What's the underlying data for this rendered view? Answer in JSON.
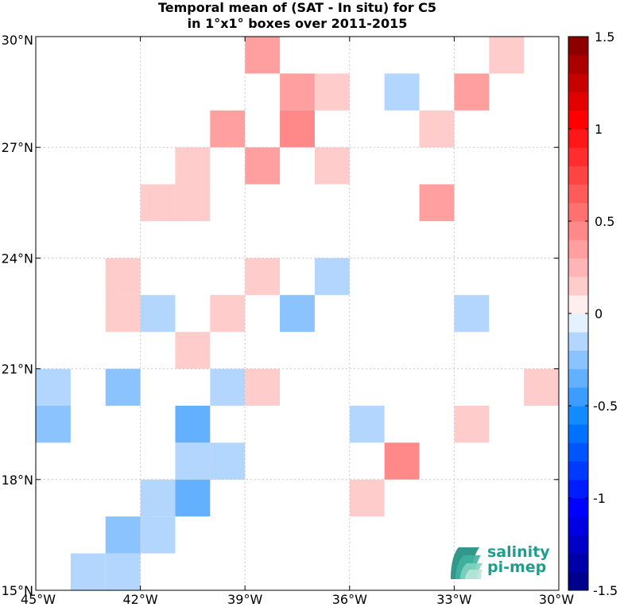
{
  "chart_data": {
    "type": "heatmap",
    "title": "Temporal mean of (SAT - In situ) for C5",
    "subtitle": "in 1°x1° boxes over 2011-2015",
    "x_ticks": [
      "45°W",
      "42°W",
      "39°W",
      "36°W",
      "33°W",
      "30°W"
    ],
    "x_tick_values": [
      -45,
      -42,
      -39,
      -36,
      -33,
      -30
    ],
    "y_ticks": [
      "15°N",
      "18°N",
      "21°N",
      "24°N",
      "27°N",
      "30°N"
    ],
    "y_tick_values": [
      15,
      18,
      21,
      24,
      27,
      30
    ],
    "xlim": [
      -45,
      -30
    ],
    "ylim": [
      15,
      30
    ],
    "grid": true,
    "colorbar": {
      "range": [
        -1.5,
        1.5
      ],
      "levels": 30,
      "tick_labels": [
        "1.5",
        "1",
        "0.5",
        "0",
        "-0.5",
        "-1",
        "-1.5"
      ],
      "tick_values": [
        1.5,
        1,
        0.5,
        0,
        -0.5,
        -1,
        -1.5
      ]
    },
    "cells": [
      {
        "lon": -38.5,
        "lat": 29.5,
        "value": 0.35
      },
      {
        "lon": -31.5,
        "lat": 29.5,
        "value": 0.15
      },
      {
        "lon": -37.5,
        "lat": 28.5,
        "value": 0.35
      },
      {
        "lon": -36.5,
        "lat": 28.5,
        "value": 0.15
      },
      {
        "lon": -34.5,
        "lat": 28.5,
        "value": -0.15
      },
      {
        "lon": -32.5,
        "lat": 28.5,
        "value": 0.35
      },
      {
        "lon": -39.5,
        "lat": 27.5,
        "value": 0.35
      },
      {
        "lon": -37.5,
        "lat": 27.5,
        "value": 0.45
      },
      {
        "lon": -33.5,
        "lat": 27.5,
        "value": 0.15
      },
      {
        "lon": -40.5,
        "lat": 26.5,
        "value": 0.15
      },
      {
        "lon": -38.5,
        "lat": 26.5,
        "value": 0.35
      },
      {
        "lon": -36.5,
        "lat": 26.5,
        "value": 0.15
      },
      {
        "lon": -41.5,
        "lat": 25.5,
        "value": 0.15
      },
      {
        "lon": -40.5,
        "lat": 25.5,
        "value": 0.15
      },
      {
        "lon": -33.5,
        "lat": 25.5,
        "value": 0.35
      },
      {
        "lon": -42.5,
        "lat": 23.5,
        "value": 0.15
      },
      {
        "lon": -38.5,
        "lat": 23.5,
        "value": 0.15
      },
      {
        "lon": -36.5,
        "lat": 23.5,
        "value": -0.15
      },
      {
        "lon": -42.5,
        "lat": 22.5,
        "value": 0.15
      },
      {
        "lon": -41.5,
        "lat": 22.5,
        "value": -0.15
      },
      {
        "lon": -39.5,
        "lat": 22.5,
        "value": 0.15
      },
      {
        "lon": -37.5,
        "lat": 22.5,
        "value": -0.25
      },
      {
        "lon": -32.5,
        "lat": 22.5,
        "value": -0.15
      },
      {
        "lon": -40.5,
        "lat": 21.5,
        "value": 0.15
      },
      {
        "lon": -44.5,
        "lat": 20.5,
        "value": -0.15
      },
      {
        "lon": -42.5,
        "lat": 20.5,
        "value": -0.25
      },
      {
        "lon": -39.5,
        "lat": 20.5,
        "value": -0.15
      },
      {
        "lon": -38.5,
        "lat": 20.5,
        "value": 0.15
      },
      {
        "lon": -30.5,
        "lat": 20.5,
        "value": 0.15
      },
      {
        "lon": -44.5,
        "lat": 19.5,
        "value": -0.25
      },
      {
        "lon": -40.5,
        "lat": 19.5,
        "value": -0.35
      },
      {
        "lon": -35.5,
        "lat": 19.5,
        "value": -0.15
      },
      {
        "lon": -32.5,
        "lat": 19.5,
        "value": 0.15
      },
      {
        "lon": -40.5,
        "lat": 18.5,
        "value": -0.15
      },
      {
        "lon": -39.5,
        "lat": 18.5,
        "value": -0.15
      },
      {
        "lon": -34.5,
        "lat": 18.5,
        "value": 0.45
      },
      {
        "lon": -41.5,
        "lat": 17.5,
        "value": -0.15
      },
      {
        "lon": -40.5,
        "lat": 17.5,
        "value": -0.35
      },
      {
        "lon": -35.5,
        "lat": 17.5,
        "value": 0.15
      },
      {
        "lon": -41.5,
        "lat": 16.5,
        "value": -0.15
      },
      {
        "lon": -42.5,
        "lat": 16.5,
        "value": -0.25
      },
      {
        "lon": -43.5,
        "lat": 15.5,
        "value": -0.15
      },
      {
        "lon": -42.5,
        "lat": 15.5,
        "value": -0.15
      }
    ]
  },
  "logo": {
    "line1": "salinity",
    "line2": "pi-mep",
    "text_color": "#1f9e8e",
    "mark_colors": [
      "#1e8c7e",
      "#3fb39f",
      "#7fd3bf",
      "#b8e6d8"
    ]
  }
}
